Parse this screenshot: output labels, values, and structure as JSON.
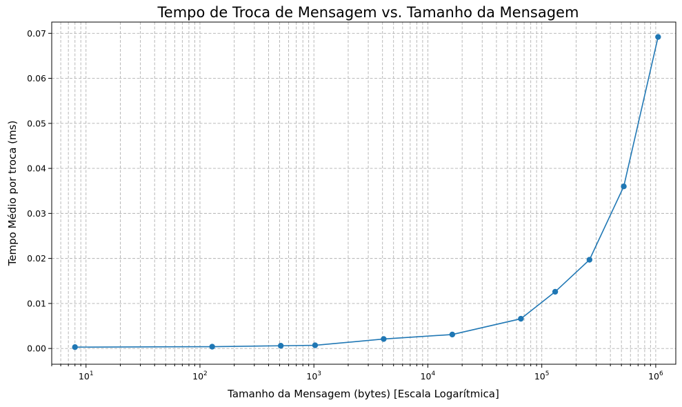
{
  "chart_data": {
    "type": "line",
    "title": "Tempo de Troca de Mensagem vs. Tamanho da Mensagem",
    "xlabel": "Tamanho da Mensagem (bytes) [Escala Logarítmica]",
    "ylabel": "Tempo Médio por troca (ms)",
    "xscale": "log",
    "xlim": [
      5,
      1500000
    ],
    "ylim": [
      -0.0035,
      0.0725
    ],
    "grid": true,
    "x_ticks": [
      {
        "value": 10,
        "base": "10",
        "exp": "1"
      },
      {
        "value": 100,
        "base": "10",
        "exp": "2"
      },
      {
        "value": 1000,
        "base": "10",
        "exp": "3"
      },
      {
        "value": 10000,
        "base": "10",
        "exp": "4"
      },
      {
        "value": 100000,
        "base": "10",
        "exp": "5"
      },
      {
        "value": 1000000,
        "base": "10",
        "exp": "6"
      }
    ],
    "y_ticks": [
      {
        "value": 0.0,
        "label": "0.00"
      },
      {
        "value": 0.01,
        "label": "0.01"
      },
      {
        "value": 0.02,
        "label": "0.02"
      },
      {
        "value": 0.03,
        "label": "0.03"
      },
      {
        "value": 0.04,
        "label": "0.04"
      },
      {
        "value": 0.05,
        "label": "0.05"
      },
      {
        "value": 0.06,
        "label": "0.06"
      },
      {
        "value": 0.07,
        "label": "0.07"
      }
    ],
    "color": "#1f77b4",
    "series": [
      {
        "x": [
          8,
          128,
          512,
          1024,
          4096,
          16384,
          65536,
          131072,
          262144,
          524288,
          1048576
        ],
        "y": [
          0.0003,
          0.0004,
          0.0006,
          0.0007,
          0.0021,
          0.0031,
          0.0066,
          0.0126,
          0.0197,
          0.036,
          0.0692
        ]
      }
    ]
  }
}
